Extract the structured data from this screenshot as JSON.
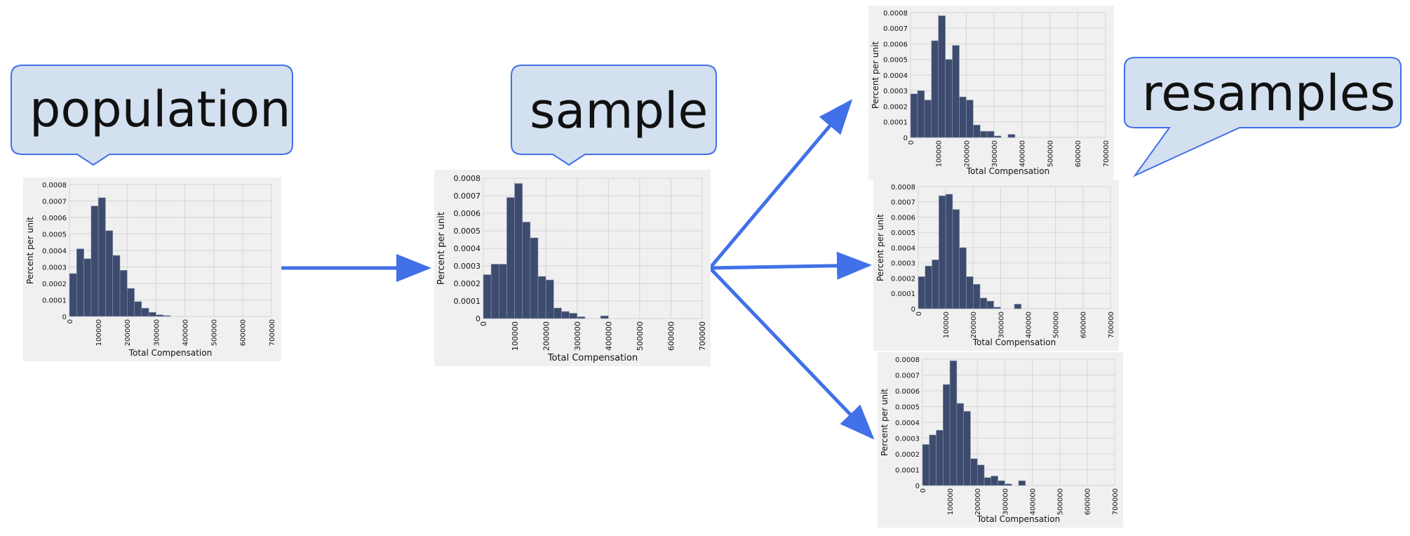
{
  "labels": {
    "population": "population",
    "sample": "sample",
    "resamples": "resamples"
  },
  "colors": {
    "bubble_fill": "#d3e0f0",
    "bubble_stroke": "#4170e8",
    "arrow": "#4170e8",
    "bar_fill": "#3d4b6e",
    "bar_stroke": "#8a96b0",
    "panel_bg": "#f0f0f0",
    "grid": "#d4d4d4"
  },
  "chart_data": [
    {
      "id": "population",
      "type": "bar",
      "xlabel": "Total Compensation",
      "ylabel": "Percent per unit",
      "xlim": [
        0,
        700000
      ],
      "ylim": [
        0,
        0.0008
      ],
      "xticks": [
        "0",
        "100000",
        "200000",
        "300000",
        "400000",
        "500000",
        "600000",
        "700000"
      ],
      "yticks": [
        "0",
        "0.0001",
        "0.0002",
        "0.0003",
        "0.0004",
        "0.0005",
        "0.0006",
        "0.0007",
        "0.0008"
      ],
      "bin_width": 25000,
      "values": [
        0.00026,
        0.00041,
        0.00035,
        0.00067,
        0.00072,
        0.00052,
        0.00037,
        0.00028,
        0.00017,
        9e-05,
        5e-05,
        2.5e-05,
        1e-05,
        5e-06,
        0,
        0,
        0,
        0,
        0,
        0,
        0,
        0,
        0,
        0,
        0,
        0,
        0,
        0
      ]
    },
    {
      "id": "sample",
      "type": "bar",
      "xlabel": "Total Compensation",
      "ylabel": "Percent per unit",
      "xlim": [
        0,
        700000
      ],
      "ylim": [
        0,
        0.0008
      ],
      "xticks": [
        "0",
        "100000",
        "200000",
        "300000",
        "400000",
        "500000",
        "600000",
        "700000"
      ],
      "yticks": [
        "0",
        "0.0001",
        "0.0002",
        "0.0003",
        "0.0004",
        "0.0005",
        "0.0006",
        "0.0007",
        "0.0008"
      ],
      "bin_width": 25000,
      "values": [
        0.00025,
        0.00031,
        0.00031,
        0.00069,
        0.00077,
        0.00055,
        0.00046,
        0.00024,
        0.00022,
        6e-05,
        4e-05,
        3e-05,
        1e-05,
        0,
        0,
        1.5e-05,
        0,
        0,
        0,
        0,
        0,
        0,
        0,
        0,
        0,
        0,
        0,
        0
      ]
    },
    {
      "id": "resample-1",
      "type": "bar",
      "xlabel": "Total Compensation",
      "ylabel": "Percent per unit",
      "xlim": [
        0,
        700000
      ],
      "ylim": [
        0,
        0.0008
      ],
      "xticks": [
        "0",
        "100000",
        "200000",
        "300000",
        "400000",
        "500000",
        "600000",
        "700000"
      ],
      "yticks": [
        "0",
        "0.0001",
        "0.0002",
        "0.0003",
        "0.0004",
        "0.0005",
        "0.0006",
        "0.0007",
        "0.0008"
      ],
      "bin_width": 25000,
      "values": [
        0.00028,
        0.0003,
        0.00024,
        0.00062,
        0.00078,
        0.0005,
        0.00059,
        0.00026,
        0.00024,
        8e-05,
        4e-05,
        4e-05,
        1e-05,
        0,
        2e-05,
        0,
        0,
        0,
        0,
        0,
        0,
        0,
        0,
        0,
        0,
        0,
        0,
        0
      ]
    },
    {
      "id": "resample-2",
      "type": "bar",
      "xlabel": "Total Compensation",
      "ylabel": "Percent per unit",
      "xlim": [
        0,
        700000
      ],
      "ylim": [
        0,
        0.0008
      ],
      "xticks": [
        "0",
        "100000",
        "200000",
        "300000",
        "400000",
        "500000",
        "600000",
        "700000"
      ],
      "yticks": [
        "0",
        "0.0001",
        "0.0002",
        "0.0003",
        "0.0004",
        "0.0005",
        "0.0006",
        "0.0007",
        "0.0008"
      ],
      "bin_width": 25000,
      "values": [
        0.00021,
        0.00028,
        0.00032,
        0.00074,
        0.00075,
        0.00065,
        0.0004,
        0.00021,
        0.00016,
        7e-05,
        5e-05,
        1e-05,
        0,
        0,
        3e-05,
        0,
        0,
        0,
        0,
        0,
        0,
        0,
        0,
        0,
        0,
        0,
        0,
        0
      ]
    },
    {
      "id": "resample-3",
      "type": "bar",
      "xlabel": "Total Compensation",
      "ylabel": "Percent per unit",
      "xlim": [
        0,
        700000
      ],
      "ylim": [
        0,
        0.0008
      ],
      "xticks": [
        "0",
        "100000",
        "200000",
        "300000",
        "400000",
        "500000",
        "600000",
        "700000"
      ],
      "yticks": [
        "0",
        "0.0001",
        "0.0002",
        "0.0003",
        "0.0004",
        "0.0005",
        "0.0006",
        "0.0007",
        "0.0008"
      ],
      "bin_width": 25000,
      "values": [
        0.00026,
        0.00032,
        0.00035,
        0.00064,
        0.00079,
        0.00052,
        0.00047,
        0.00017,
        0.00013,
        5e-05,
        6e-05,
        3e-05,
        1e-05,
        0,
        3e-05,
        0,
        0,
        0,
        0,
        0,
        0,
        0,
        0,
        0,
        0,
        0,
        0,
        0
      ]
    }
  ]
}
